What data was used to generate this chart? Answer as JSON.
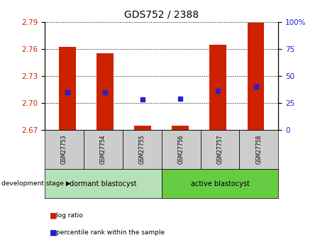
{
  "title": "GDS752 / 2388",
  "samples": [
    "GSM27753",
    "GSM27754",
    "GSM27755",
    "GSM27756",
    "GSM27757",
    "GSM27758"
  ],
  "bar_tops": [
    2.762,
    2.755,
    2.675,
    2.675,
    2.765,
    2.789
  ],
  "bar_bottom": 2.67,
  "percentile_ranks": [
    35,
    35,
    28,
    29,
    36,
    40
  ],
  "ylim_left": [
    2.67,
    2.79
  ],
  "yticks_left": [
    2.67,
    2.7,
    2.73,
    2.76,
    2.79
  ],
  "ylim_right": [
    0,
    100
  ],
  "yticks_right": [
    0,
    25,
    50,
    75,
    100
  ],
  "bar_color": "#cc2200",
  "dot_color": "#2222cc",
  "bar_width": 0.45,
  "group1_label": "dormant blastocyst",
  "group2_label": "active blastocyst",
  "group1_indices": [
    0,
    1,
    2
  ],
  "group2_indices": [
    3,
    4,
    5
  ],
  "group1_bg": "#b8e0b8",
  "group2_bg": "#66cc44",
  "sample_bg": "#cccccc",
  "legend_log_ratio": "log ratio",
  "legend_percentile": "percentile rank within the sample",
  "stage_label": "development stage",
  "title_color": "#000000",
  "left_axis_color": "#cc2200",
  "right_axis_color": "#2222cc",
  "grid_color": "#000000"
}
